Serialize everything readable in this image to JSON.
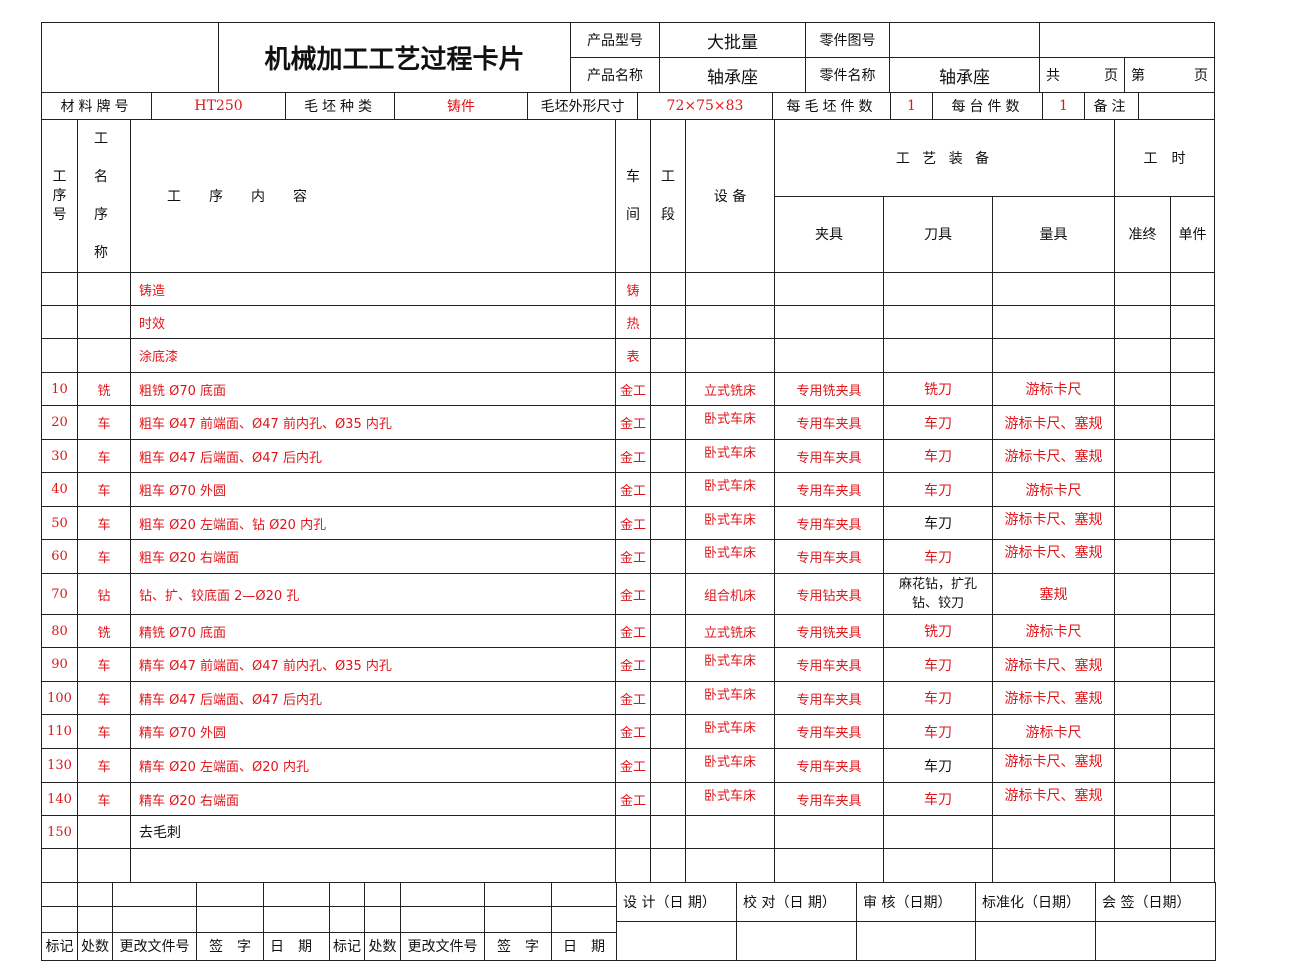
{
  "header": {
    "left_blank": "",
    "title": "机械加工工艺过程卡片",
    "product_model_label": "产品型号",
    "product_model_value": "大批量",
    "part_drawing_label": "零件图号",
    "part_drawing_value": "",
    "product_name_label": "产品名称",
    "product_name_value": "轴承座",
    "part_name_label": "零件名称",
    "part_name_value": "轴承座",
    "total_label": "共",
    "page_label": "页",
    "nth_label": "第",
    "page_label2": "页"
  },
  "material_row": {
    "material_label": "材料牌号",
    "material_value": "HT250",
    "blank_type_label": "毛坯种类",
    "blank_type_value": "铸件",
    "blank_size_label": "毛坯外形尺寸",
    "blank_size_value": "72×75×83",
    "per_blank_label": "每毛坯件数",
    "per_blank_value": "1",
    "per_unit_label": "每台件数",
    "per_unit_value": "1",
    "remark_label": "备注",
    "remark_value": ""
  },
  "columns": {
    "op_no": "工序号",
    "op_name": "工名序称",
    "content": "工　　序　　内　　容",
    "workshop": "车间",
    "section": "工段",
    "equipment": "设 备",
    "tooling": "工 艺 装 备",
    "fixture": "夹具",
    "cutter": "刀具",
    "gauge": "量具",
    "time": "工　时",
    "prep_time": "准终",
    "unit_time": "单件"
  },
  "operations": [
    {
      "no": "",
      "name": "",
      "content": "铸造",
      "shop": "铸",
      "section": "",
      "equip": "",
      "fixture": "",
      "cutter": "",
      "gauge": ""
    },
    {
      "no": "",
      "name": "",
      "content": "时效",
      "shop": "热",
      "section": "",
      "equip": "",
      "fixture": "",
      "cutter": "",
      "gauge": ""
    },
    {
      "no": "",
      "name": "",
      "content": "涂底漆",
      "shop": "表",
      "section": "",
      "equip": "",
      "fixture": "",
      "cutter": "",
      "gauge": ""
    },
    {
      "no": "10",
      "name": "铣",
      "content": "粗铣 Ø70 底面",
      "shop": "金工",
      "section": "",
      "equip": "立式铣床",
      "fixture": "专用铣夹具",
      "cutter": "铣刀",
      "gauge": "游标卡尺"
    },
    {
      "no": "20",
      "name": "车",
      "content": "粗车 Ø47 前端面、Ø47 前内孔、Ø35 内孔",
      "shop": "金工",
      "section": "",
      "equip": "卧式车床",
      "fixture": "专用车夹具",
      "cutter": "车刀",
      "gauge": "游标卡尺、塞规"
    },
    {
      "no": "30",
      "name": "车",
      "content": "粗车 Ø47 后端面、Ø47 后内孔",
      "shop": "金工",
      "section": "",
      "equip": "卧式车床",
      "fixture": "专用车夹具",
      "cutter": "车刀",
      "gauge": "游标卡尺、塞规"
    },
    {
      "no": "40",
      "name": "车",
      "content": "粗车 Ø70 外圆",
      "shop": "金工",
      "section": "",
      "equip": "卧式车床",
      "fixture": "专用车夹具",
      "cutter": "车刀",
      "gauge": "游标卡尺"
    },
    {
      "no": "50",
      "name": "车",
      "content": "粗车 Ø20 左端面、钻 Ø20 内孔",
      "shop": "金工",
      "section": "",
      "equip": "卧式车床",
      "fixture": "专用车夹具",
      "cutter": "车刀",
      "gauge": "游标卡尺、塞规"
    },
    {
      "no": "60",
      "name": "车",
      "content": "粗车 Ø20 右端面",
      "shop": "金工",
      "section": "",
      "equip": "卧式车床",
      "fixture": "专用车夹具",
      "cutter": "车刀",
      "gauge": "游标卡尺、塞规"
    },
    {
      "no": "70",
      "name": "钻",
      "content": "钻、扩、铰底面 2—Ø20 孔",
      "shop": "金工",
      "section": "",
      "equip": "组合机床",
      "fixture": "专用钻夹具",
      "cutter": "麻花钻，扩孔钻、铰刀",
      "gauge": "塞规"
    },
    {
      "no": "80",
      "name": "铣",
      "content": "精铣 Ø70 底面",
      "shop": "金工",
      "section": "",
      "equip": "立式铣床",
      "fixture": "专用铣夹具",
      "cutter": "铣刀",
      "gauge": "游标卡尺"
    },
    {
      "no": "90",
      "name": "车",
      "content": "精车 Ø47 前端面、Ø47 前内孔、Ø35 内孔",
      "shop": "金工",
      "section": "",
      "equip": "卧式车床",
      "fixture": "专用车夹具",
      "cutter": "车刀",
      "gauge": "游标卡尺、塞规"
    },
    {
      "no": "100",
      "name": "车",
      "content": "精车 Ø47 后端面、Ø47 后内孔",
      "shop": "金工",
      "section": "",
      "equip": "卧式车床",
      "fixture": "专用车夹具",
      "cutter": "车刀",
      "gauge": "游标卡尺、塞规"
    },
    {
      "no": "110",
      "name": "车",
      "content": "精车 Ø70 外圆",
      "shop": "金工",
      "section": "",
      "equip": "卧式车床",
      "fixture": "专用车夹具",
      "cutter": "车刀",
      "gauge": "游标卡尺"
    },
    {
      "no": "130",
      "name": "车",
      "content": "精车 Ø20 左端面、Ø20 内孔",
      "shop": "金工",
      "section": "",
      "equip": "卧式车床",
      "fixture": "专用车夹具",
      "cutter": "车刀",
      "gauge": "游标卡尺、塞规"
    },
    {
      "no": "140",
      "name": "车",
      "content": "精车 Ø20 右端面",
      "shop": "金工",
      "section": "",
      "equip": "卧式车床",
      "fixture": "专用车夹具",
      "cutter": "车刀",
      "gauge": "游标卡尺、塞规"
    },
    {
      "no": "150",
      "name": "",
      "content": "去毛刺",
      "shop": "",
      "section": "",
      "equip": "",
      "fixture": "",
      "cutter": "",
      "gauge": ""
    },
    {
      "no": "",
      "name": "",
      "content": "",
      "shop": "",
      "section": "",
      "equip": "",
      "fixture": "",
      "cutter": "",
      "gauge": ""
    }
  ],
  "footer": {
    "mark": "标记",
    "count": "处数",
    "change_doc": "更改文件号",
    "sign": "签　字",
    "date": "日　期",
    "design": "设 计（日 期）",
    "check": "校 对（日 期）",
    "review": "审 核（日期）",
    "standard": "标准化（日期）",
    "countersign": "会 签（日期）"
  }
}
